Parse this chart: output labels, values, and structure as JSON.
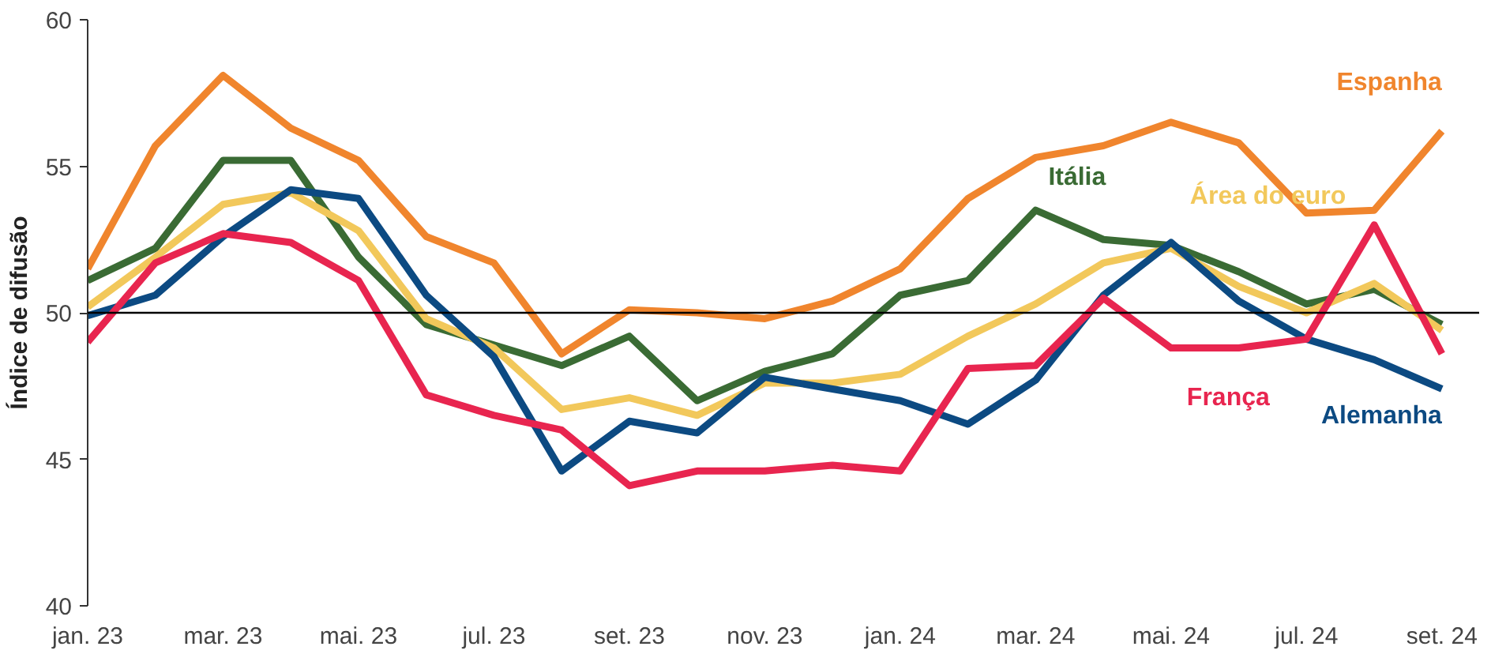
{
  "chart_data": {
    "type": "line",
    "ylabel": "Índice de difusão",
    "categories": [
      "jan. 23",
      null,
      "mar. 23",
      null,
      "mai. 23",
      null,
      "jul. 23",
      null,
      "set. 23",
      null,
      "nov. 23",
      null,
      "jan. 24",
      null,
      "mar. 24",
      null,
      "mai. 24",
      null,
      "jul. 24",
      null,
      "set. 24"
    ],
    "series": [
      {
        "name": "Espanha",
        "color": "#f0852d",
        "values": [
          51.5,
          55.7,
          58.1,
          56.3,
          55.2,
          52.6,
          51.7,
          48.6,
          50.1,
          50.0,
          49.8,
          50.4,
          51.5,
          53.9,
          55.3,
          55.7,
          56.5,
          55.8,
          53.4,
          53.5,
          56.2
        ]
      },
      {
        "name": "Itália",
        "color": "#3a6b34",
        "values": [
          51.1,
          52.2,
          55.2,
          55.2,
          51.9,
          49.6,
          48.9,
          48.2,
          49.2,
          47.0,
          48.0,
          48.6,
          50.6,
          51.1,
          53.5,
          52.5,
          52.3,
          51.4,
          50.3,
          50.8,
          49.6
        ]
      },
      {
        "name": "Área do euro",
        "color": "#f2c85b",
        "values": [
          50.2,
          51.9,
          53.7,
          54.1,
          52.8,
          49.8,
          48.8,
          46.7,
          47.1,
          46.5,
          47.6,
          47.6,
          47.9,
          49.2,
          50.3,
          51.7,
          52.2,
          50.9,
          50.0,
          51.0,
          49.4
        ]
      },
      {
        "name": "Alemanha",
        "color": "#0c4a82",
        "values": [
          49.9,
          50.6,
          52.6,
          54.2,
          53.9,
          50.6,
          48.5,
          44.6,
          46.3,
          45.9,
          47.8,
          47.4,
          47.0,
          46.2,
          47.7,
          50.6,
          52.4,
          50.4,
          49.1,
          48.4,
          47.4
        ]
      },
      {
        "name": "França",
        "color": "#e8254f",
        "values": [
          49.0,
          51.7,
          52.7,
          52.4,
          51.1,
          47.2,
          46.5,
          46.0,
          44.1,
          44.6,
          44.6,
          44.8,
          44.6,
          48.1,
          48.2,
          50.5,
          48.8,
          48.8,
          49.1,
          53.0,
          48.6
        ]
      }
    ],
    "ylim": [
      40,
      60
    ],
    "yticks": [
      40,
      45,
      50,
      55,
      60
    ],
    "ref_lines": [
      {
        "axis": "y",
        "value": 50,
        "color": "#000000"
      }
    ],
    "grid": false,
    "marker": "none",
    "line_style": "solid"
  }
}
